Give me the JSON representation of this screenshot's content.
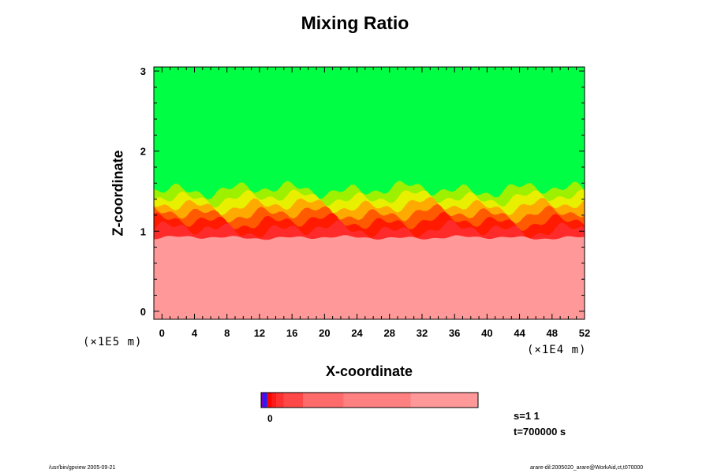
{
  "chart_data": {
    "type": "heatmap",
    "title": "Mixing Ratio",
    "xlabel": "X-coordinate",
    "ylabel": "Z-coordinate",
    "x_unit": "(×1E4 m)",
    "y_unit": "(×1E5 m)",
    "xlim": [
      -1,
      52
    ],
    "ylim": [
      -0.1,
      3.05
    ],
    "x_ticks": [
      0,
      4,
      8,
      12,
      16,
      20,
      24,
      28,
      32,
      36,
      40,
      44,
      48,
      52
    ],
    "y_ticks": [
      0,
      1,
      2,
      3
    ],
    "bands": [
      {
        "z_from": -0.1,
        "z_to": 0.92,
        "color": "#ff9999"
      },
      {
        "z_from": 0.92,
        "z_to": 1.02,
        "color": "#ff2b2b"
      },
      {
        "z_from": 1.02,
        "z_to": 1.12,
        "color": "#ff1a00"
      },
      {
        "z_from": 1.12,
        "z_to": 1.22,
        "color": "#ff5a00"
      },
      {
        "z_from": 1.22,
        "z_to": 1.32,
        "color": "#ffaa00"
      },
      {
        "z_from": 1.32,
        "z_to": 1.42,
        "color": "#e8f000"
      },
      {
        "z_from": 1.42,
        "z_to": 1.52,
        "color": "#9cf000"
      },
      {
        "z_from": 1.52,
        "z_to": 3.05,
        "color": "#00ff44"
      }
    ],
    "colorbar": {
      "label": "0",
      "segments": [
        "#7a00c8",
        "#2020ff",
        "#ff0000",
        "#ff1a1a",
        "#ff3030",
        "#ff4848",
        "#ff6a6a",
        "#ff8080",
        "#ff9999"
      ],
      "segment_widths": [
        2,
        2,
        3,
        3,
        5,
        13,
        27,
        45,
        45
      ]
    },
    "grid": false
  },
  "annotations": {
    "s_label": "s=1 1",
    "t_label": "t=700000 s",
    "footer_left": "/usr/bin/gpview 2005-09-21",
    "footer_right": "arare-dil:2005020_arare@WorkAid,ct,t070000"
  }
}
